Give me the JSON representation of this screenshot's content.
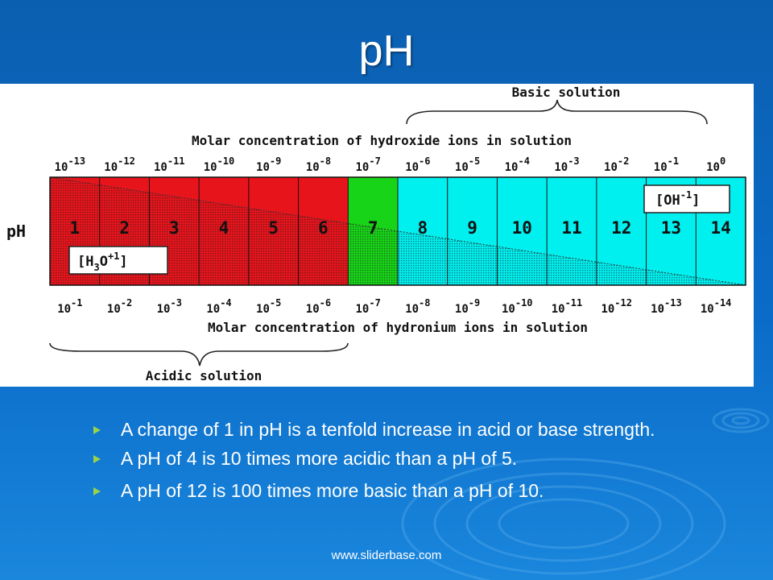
{
  "title": "pH",
  "diagram": {
    "basic_label": "Basic solution",
    "acidic_label": "Acidic solution",
    "hydroxide_label": "Molar concentration of hydroxide ions in solution",
    "hydronium_label": "Molar concentration of hydronium ions in solution",
    "ph_axis_label": "pH",
    "oh_box_label": "[OH",
    "oh_box_exp": "-1",
    "h3o_box_label": "[H",
    "h3o_box_sub": "3",
    "h3o_box_mid": "O",
    "h3o_box_exp": "+1",
    "bracket_close": "]",
    "ph_values": [
      "1",
      "2",
      "3",
      "4",
      "5",
      "6",
      "7",
      "8",
      "9",
      "10",
      "11",
      "12",
      "13",
      "14"
    ],
    "hydroxide_exponents": [
      "-13",
      "-12",
      "-11",
      "-10",
      "-9",
      "-8",
      "-7",
      "-6",
      "-5",
      "-4",
      "-3",
      "-2",
      "-1",
      "0"
    ],
    "hydronium_exponents": [
      "-1",
      "-2",
      "-3",
      "-4",
      "-5",
      "-6",
      "-7",
      "-8",
      "-9",
      "-10",
      "-11",
      "-12",
      "-13",
      "-14"
    ],
    "base_ten": "10",
    "colors": {
      "acidic": "#e8141c",
      "neutral": "#18d418",
      "basic": "#00f0f0",
      "grid": "#111111"
    }
  },
  "bullets": [
    "A change of 1 in pH is a tenfold increase in acid or base strength.",
    "A pH of 4 is 10 times more acidic than a pH of 5.",
    "A pH of 12 is 100 times more basic than a pH of 10."
  ],
  "footer": "www.sliderbase.com"
}
